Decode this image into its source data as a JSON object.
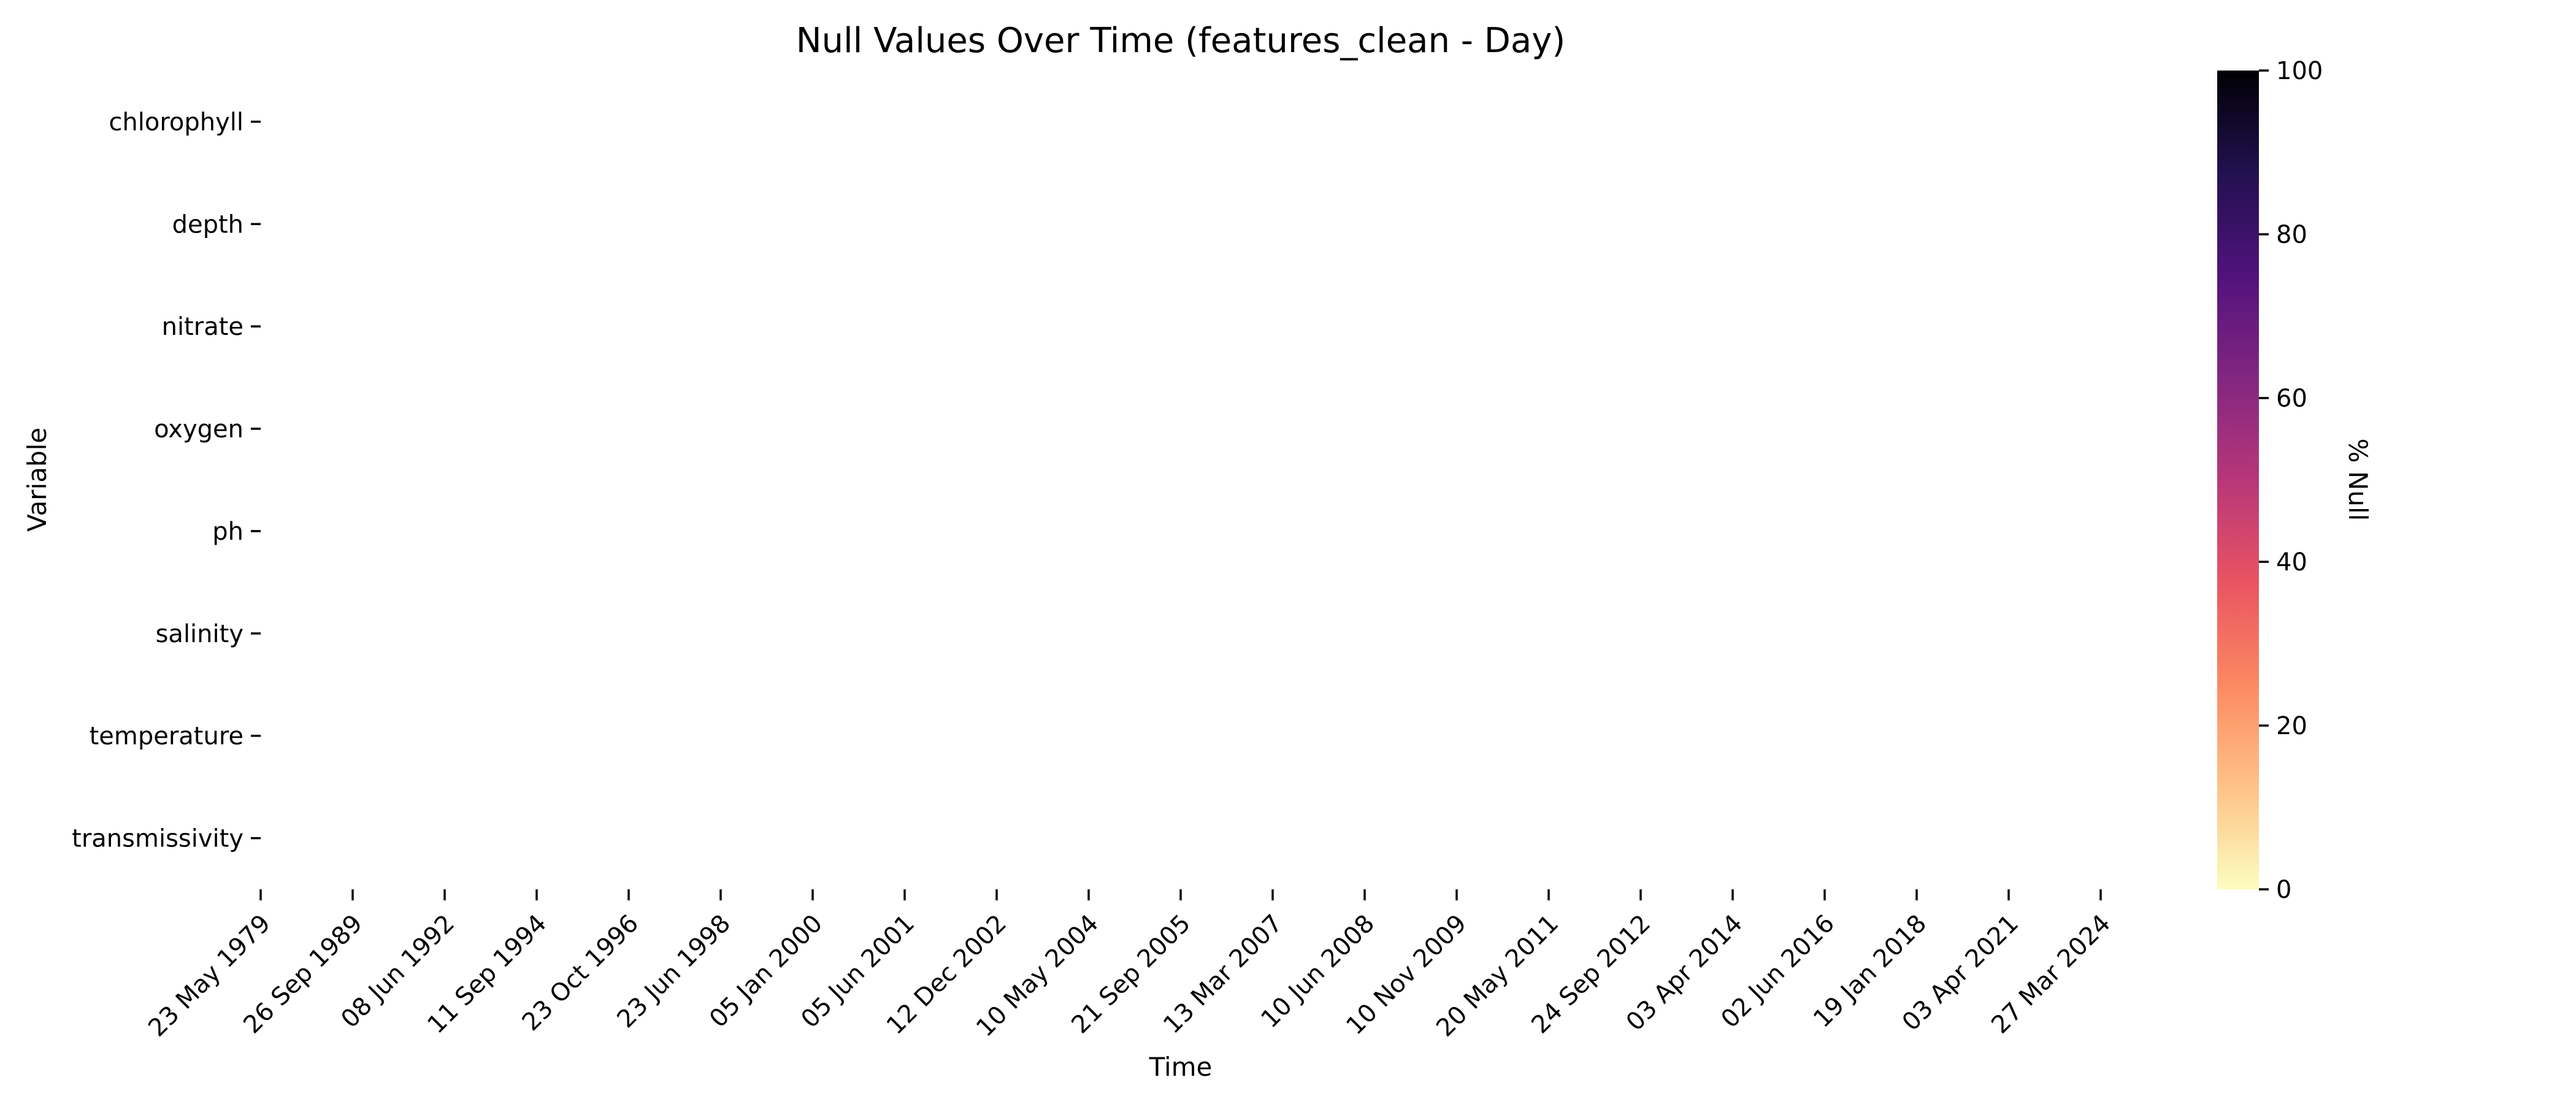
{
  "chart_data": {
    "type": "heatmap",
    "title": "Null Values Over Time (features_clean - Day)",
    "xlabel": "Time",
    "ylabel": "Variable",
    "y_categories": [
      "chlorophyll",
      "depth",
      "nitrate",
      "oxygen",
      "ph",
      "salinity",
      "temperature",
      "transmissivity"
    ],
    "x_tick_labels": [
      "23 May 1979",
      "26 Sep 1989",
      "08 Jun 1992",
      "11 Sep 1994",
      "23 Oct 1996",
      "23 Jun 1998",
      "05 Jan 2000",
      "05 Jun 2001",
      "12 Dec 2002",
      "10 May 2004",
      "21 Sep 2005",
      "13 Mar 2007",
      "10 Jun 2008",
      "10 Nov 2009",
      "20 May 2011",
      "24 Sep 2012",
      "03 Apr 2014",
      "02 Jun 2016",
      "19 Jan 2018",
      "03 Apr 2021",
      "27 Mar 2024"
    ],
    "values_all": 0,
    "colorbar": {
      "label": "% Null",
      "range": [
        0,
        100
      ],
      "ticks": [
        "0",
        "20",
        "40",
        "60",
        "80",
        "100"
      ],
      "colormap": "magma_r",
      "colors": [
        "#fcfdbf",
        "#fec287",
        "#fc8961",
        "#e95462",
        "#b73779",
        "#822681",
        "#51127c",
        "#221150",
        "#000004"
      ]
    },
    "grid": false,
    "legend": "colorbar right"
  }
}
